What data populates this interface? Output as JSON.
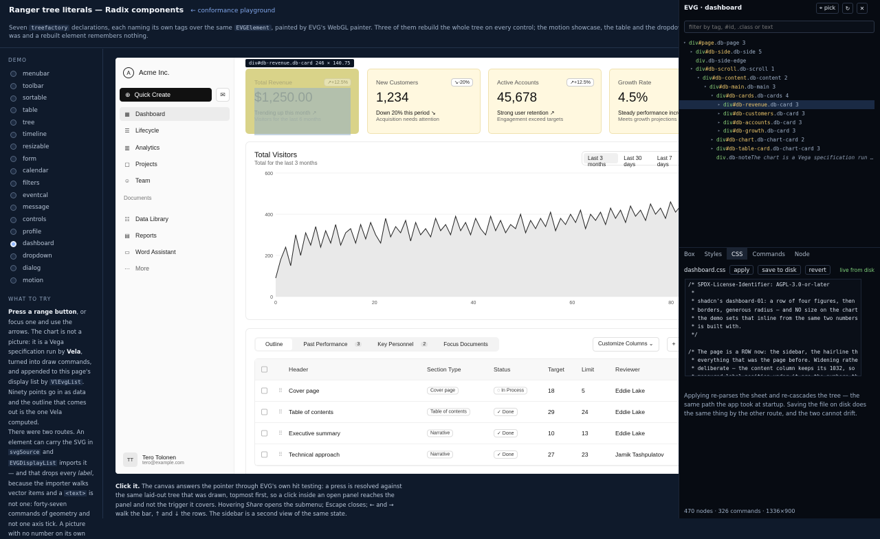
{
  "header": {
    "title": "Ranger tree literals — Radix components",
    "link": "← conformance playground",
    "desc_a": "Seven ",
    "desc_code1": "treefactory",
    "desc_b": " declarations, each naming its own tags over the same ",
    "desc_code2": "EVGElement",
    "desc_c": ", painted by EVG's WebGL painter. Three of them rebuild the whole tree on every control; the motion showcase, the table and the dropdown",
    "desc_line2": "was and a rebuilt element remembers nothing."
  },
  "left": {
    "demo_heading": "DEMO",
    "demos": [
      "menubar",
      "toolbar",
      "sortable",
      "table",
      "tree",
      "timeline",
      "resizable",
      "form",
      "calendar",
      "filters",
      "eventcal",
      "message",
      "controls",
      "profile",
      "dashboard",
      "dropdown",
      "dialog",
      "motion"
    ],
    "selected": "dashboard",
    "try_heading": "WHAT TO TRY",
    "p1_bold": "Press a range button",
    "p1_a": ", or focus one and use the arrows. The chart is not a picture: it is a Vega specification run by ",
    "p1_bold2": "Vela",
    "p1_b": ", turned into draw commands, and appended to this page's display list by ",
    "p1_code": "VlEvgList",
    "p1_c": ". Ninety points go in as data and the outline that comes out is the one Vela computed.",
    "p2_a": "There were two routes. An element can carry the SVG in ",
    "p2_code1": "svgSource",
    "p2_b": " and ",
    "p2_code2": "EVGDisplayList",
    "p2_c": " imports it — and that drops every ",
    "p2_em": "label",
    "p2_d": ", because the importer walks vector items and a ",
    "p2_code3": "<text>",
    "p2_e": " is not one: forty-seven commands of geometry and not one axis tick. A picture with no number on its own"
  },
  "app": {
    "brand": "Acme Inc.",
    "brand_logo": "A",
    "quick_create": "Quick Create",
    "nav": [
      {
        "icon": "dashboard-icon",
        "glyph": "▦",
        "label": "Dashboard"
      },
      {
        "icon": "lifecycle-icon",
        "glyph": "☰",
        "label": "Lifecycle"
      },
      {
        "icon": "analytics-icon",
        "glyph": "▥",
        "label": "Analytics"
      },
      {
        "icon": "folder-icon",
        "glyph": "▢",
        "label": "Projects"
      },
      {
        "icon": "team-icon",
        "glyph": "☺",
        "label": "Team"
      }
    ],
    "documents_heading": "Documents",
    "docs": [
      {
        "icon": "database-icon",
        "glyph": "☷",
        "label": "Data Library"
      },
      {
        "icon": "report-icon",
        "glyph": "▤",
        "label": "Reports"
      },
      {
        "icon": "file-icon",
        "glyph": "▭",
        "label": "Word Assistant"
      },
      {
        "icon": "more-icon",
        "glyph": "···",
        "label": "More"
      }
    ],
    "user": {
      "initials": "TT",
      "name": "Tero Tolonen",
      "email": "tero@example.com"
    },
    "tooltip": "div#db-revenue.db-card 246 × 140.75",
    "cards": [
      {
        "label": "Total Revenue",
        "badge": "↗+12.5%",
        "value": "$1,250.00",
        "sub1": "Trending up this month ↗",
        "sub2": "Visitors for the last 6 months"
      },
      {
        "label": "New Customers",
        "badge": "↘-20%",
        "value": "1,234",
        "sub1": "Down 20% this period ↘",
        "sub2": "Acquisition needs attention"
      },
      {
        "label": "Active Accounts",
        "badge": "↗+12.5%",
        "value": "45,678",
        "sub1": "Strong user retention ↗",
        "sub2": "Engagement exceed targets"
      },
      {
        "label": "Growth Rate",
        "badge": "↗+4.5%",
        "value": "4.5%",
        "sub1": "Steady performance increase ↗",
        "sub2": "Meets growth projections"
      }
    ],
    "chart_title": "Total Visitors",
    "chart_sub": "Total for the last 3 months",
    "ranges": [
      "Last 3 months",
      "Last 30 days",
      "Last 7 days"
    ],
    "range_selected": "Last 3 months",
    "table_tabs": [
      {
        "label": "Outline",
        "count": ""
      },
      {
        "label": "Past Performance",
        "count": "3"
      },
      {
        "label": "Key Personnel",
        "count": "2"
      },
      {
        "label": "Focus Documents",
        "count": ""
      }
    ],
    "customize": "Customize Columns ⌄",
    "add": "+",
    "columns": [
      "Header",
      "Section Type",
      "Status",
      "Target",
      "Limit",
      "Reviewer"
    ],
    "rows": [
      [
        "Cover page",
        "Cover page",
        "In Process",
        "18",
        "5",
        "Eddie Lake"
      ],
      [
        "Table of contents",
        "Table of contents",
        "Done",
        "29",
        "24",
        "Eddie Lake"
      ],
      [
        "Executive summary",
        "Narrative",
        "Done",
        "10",
        "13",
        "Eddie Lake"
      ],
      [
        "Technical approach",
        "Narrative",
        "Done",
        "27",
        "23",
        "Jamik Tashpulatov"
      ]
    ]
  },
  "chart_data": {
    "type": "area",
    "title": "Total Visitors",
    "xlabel": "",
    "ylabel": "",
    "xlim": [
      0,
      90
    ],
    "ylim": [
      0,
      600
    ],
    "x_ticks": [
      0,
      20,
      40,
      60,
      80
    ],
    "y_ticks": [
      0,
      200,
      400,
      600
    ],
    "y": [
      90,
      180,
      240,
      150,
      300,
      200,
      310,
      250,
      340,
      240,
      320,
      260,
      350,
      250,
      310,
      330,
      260,
      350,
      280,
      360,
      300,
      260,
      380,
      290,
      340,
      310,
      370,
      270,
      360,
      300,
      330,
      290,
      380,
      320,
      350,
      300,
      390,
      320,
      360,
      300,
      380,
      330,
      300,
      390,
      320,
      370,
      310,
      350,
      330,
      400,
      310,
      370,
      330,
      380,
      340,
      410,
      320,
      380,
      350,
      400,
      360,
      420,
      330,
      400,
      370,
      410,
      350,
      430,
      380,
      420,
      360,
      440,
      390,
      420,
      370,
      450,
      400,
      430,
      380,
      460,
      410,
      440,
      390,
      470,
      420,
      450,
      410,
      460,
      420,
      440
    ]
  },
  "below": {
    "bold": "Click it.",
    "a": " The canvas answers the pointer through EVG's own hit testing: a press is resolved against the same laid-out tree that was drawn, topmost first, so a click inside an open panel reaches the panel and not the trigger it covers. Hovering ",
    "em": "Share",
    "b": " opens the submenu; Escape closes; ← and → walk the bar, ↑ and ↓ the rows. The sidebar is a second view of the same state."
  },
  "inspector": {
    "title": "EVG · dashboard",
    "pick": "⌖ pick",
    "refresh": "↻",
    "close": "✕",
    "filter_placeholder": "filter by tag, #id, .class or text",
    "tree": [
      {
        "d": 0,
        "tw": "▾",
        "tag": "div",
        "id": "#page",
        "cls": ".db-page 3"
      },
      {
        "d": 1,
        "tw": "▸",
        "tag": "div",
        "id": "#db-side",
        "cls": ".db-side 5"
      },
      {
        "d": 1,
        "tw": "",
        "tag": "div",
        "id": "",
        "cls": ".db-side-edge"
      },
      {
        "d": 1,
        "tw": "▾",
        "tag": "div",
        "id": "#db-scroll",
        "cls": ".db-scroll 1"
      },
      {
        "d": 2,
        "tw": "▾",
        "tag": "div",
        "id": "#db-content",
        "cls": ".db-content 2"
      },
      {
        "d": 3,
        "tw": "▾",
        "tag": "div",
        "id": "#db-main",
        "cls": ".db-main 3"
      },
      {
        "d": 4,
        "tw": "▾",
        "tag": "div",
        "id": "#db-cards",
        "cls": ".db-cards 4"
      },
      {
        "d": 5,
        "tw": "▸",
        "tag": "div",
        "id": "#db-revenue",
        "cls": ".db-card 3",
        "sel": true
      },
      {
        "d": 5,
        "tw": "▸",
        "tag": "div",
        "id": "#db-customers",
        "cls": ".db-card 3"
      },
      {
        "d": 5,
        "tw": "▸",
        "tag": "div",
        "id": "#db-accounts",
        "cls": ".db-card 3"
      },
      {
        "d": 5,
        "tw": "▸",
        "tag": "div",
        "id": "#db-growth",
        "cls": ".db-card 3"
      },
      {
        "d": 4,
        "tw": "▸",
        "tag": "div",
        "id": "#db-chart",
        "cls": ".db-chart-card 2"
      },
      {
        "d": 4,
        "tw": "▸",
        "tag": "div",
        "id": "#db-table-card",
        "cls": ".db-chart-card 3"
      },
      {
        "d": 4,
        "tw": "",
        "tag": "div",
        "id": "",
        "cls": ".db-note",
        "txt": "The chart is a Vega specification run …"
      }
    ],
    "tabs": [
      "Box",
      "Styles",
      "CSS",
      "Commands",
      "Node"
    ],
    "tab_selected": "CSS",
    "css_file": "dashboard.css",
    "apply": "apply",
    "save": "save to disk",
    "revert": "revert",
    "live": "live from disk",
    "code": "/* SPDX-License-Identifier: AGPL-3.0-or-later\n *\n * shadcn's dashboard-01: a row of four figures, then\n * borders, generous radius — and NO size on the chart\n * the demo sets that inline from the same two numbers\n * is built with.\n */\n\n/* The page is a ROW now: the sidebar, the hairline th\n * everything that was the page before. Widening rathe\n * deliberate — the content column keeps its 1032, so\n * measured label position under it are the numbers th",
    "note": "Applying re-parses the sheet and re-cascades the tree — the same path the app took at startup. Saving the file on disk does the same thing by the other route, and the two cannot drift.",
    "footer": "470 nodes · 326 commands · 1336×900"
  }
}
